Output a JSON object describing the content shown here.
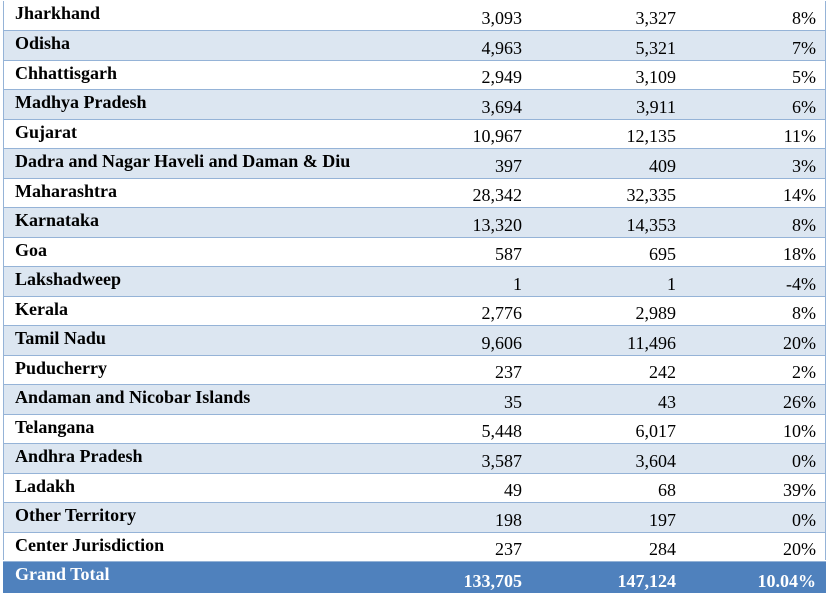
{
  "rows": [
    {
      "state": "Jharkhand",
      "v1": "3,093",
      "v2": "3,327",
      "growth": "8%"
    },
    {
      "state": "Odisha",
      "v1": "4,963",
      "v2": "5,321",
      "growth": "7%"
    },
    {
      "state": "Chhattisgarh",
      "v1": "2,949",
      "v2": "3,109",
      "growth": "5%"
    },
    {
      "state": "Madhya Pradesh",
      "v1": "3,694",
      "v2": "3,911",
      "growth": "6%"
    },
    {
      "state": "Gujarat",
      "v1": "10,967",
      "v2": "12,135",
      "growth": "11%"
    },
    {
      "state": "Dadra and Nagar Haveli and Daman & Diu",
      "v1": "397",
      "v2": "409",
      "growth": "3%"
    },
    {
      "state": "Maharashtra",
      "v1": "28,342",
      "v2": "32,335",
      "growth": "14%"
    },
    {
      "state": "Karnataka",
      "v1": "13,320",
      "v2": "14,353",
      "growth": "8%"
    },
    {
      "state": "Goa",
      "v1": "587",
      "v2": "695",
      "growth": "18%"
    },
    {
      "state": "Lakshadweep",
      "v1": "1",
      "v2": "1",
      "growth": "-4%"
    },
    {
      "state": "Kerala",
      "v1": "2,776",
      "v2": "2,989",
      "growth": "8%"
    },
    {
      "state": "Tamil Nadu",
      "v1": "9,606",
      "v2": "11,496",
      "growth": "20%"
    },
    {
      "state": "Puducherry",
      "v1": "237",
      "v2": "242",
      "growth": "2%"
    },
    {
      "state": "Andaman and Nicobar Islands",
      "v1": "35",
      "v2": "43",
      "growth": "26%"
    },
    {
      "state": "Telangana",
      "v1": "5,448",
      "v2": "6,017",
      "growth": "10%"
    },
    {
      "state": "Andhra Pradesh",
      "v1": "3,587",
      "v2": "3,604",
      "growth": "0%"
    },
    {
      "state": "Ladakh",
      "v1": "49",
      "v2": "68",
      "growth": "39%"
    },
    {
      "state": "Other Territory",
      "v1": "198",
      "v2": "197",
      "growth": "0%"
    },
    {
      "state": "Center Jurisdiction",
      "v1": "237",
      "v2": "284",
      "growth": "20%"
    }
  ],
  "total": {
    "state": "Grand Total",
    "v1": "133,705",
    "v2": "147,124",
    "growth": "10.04%"
  },
  "colors": {
    "band": "#dce6f1",
    "total_bg": "#4f81bd",
    "border": "#95b3d7"
  }
}
